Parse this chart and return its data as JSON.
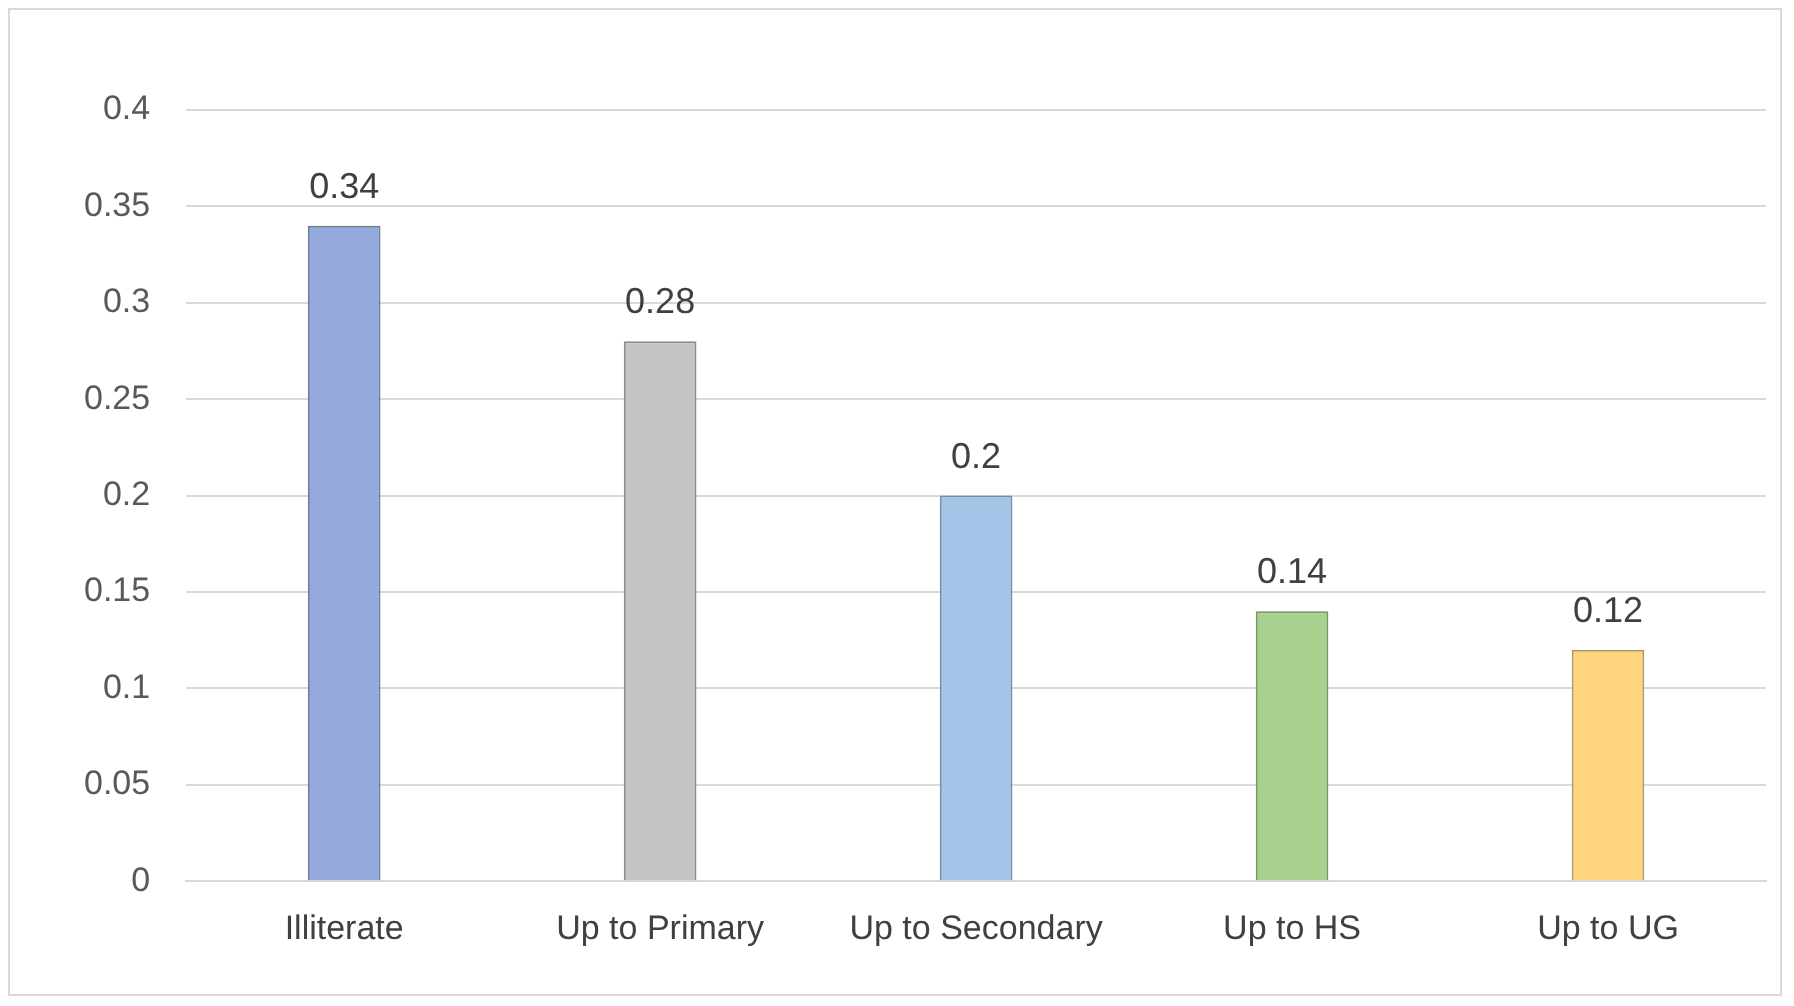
{
  "chart_data": {
    "type": "bar",
    "categories": [
      "Illiterate",
      "Up to Primary",
      "Up to Secondary",
      "Up to HS",
      "Up to UG"
    ],
    "values": [
      0.34,
      0.28,
      0.2,
      0.14,
      0.12
    ],
    "colors": [
      "#94aadc",
      "#c4c4c4",
      "#a4c4e8",
      "#a8d08e",
      "#fed57e"
    ],
    "ylim": [
      0,
      0.4
    ],
    "yticks": [
      0,
      0.05,
      0.1,
      0.15,
      0.2,
      0.25,
      0.3,
      0.35,
      0.4
    ],
    "grid": "y",
    "data_labels": true
  }
}
